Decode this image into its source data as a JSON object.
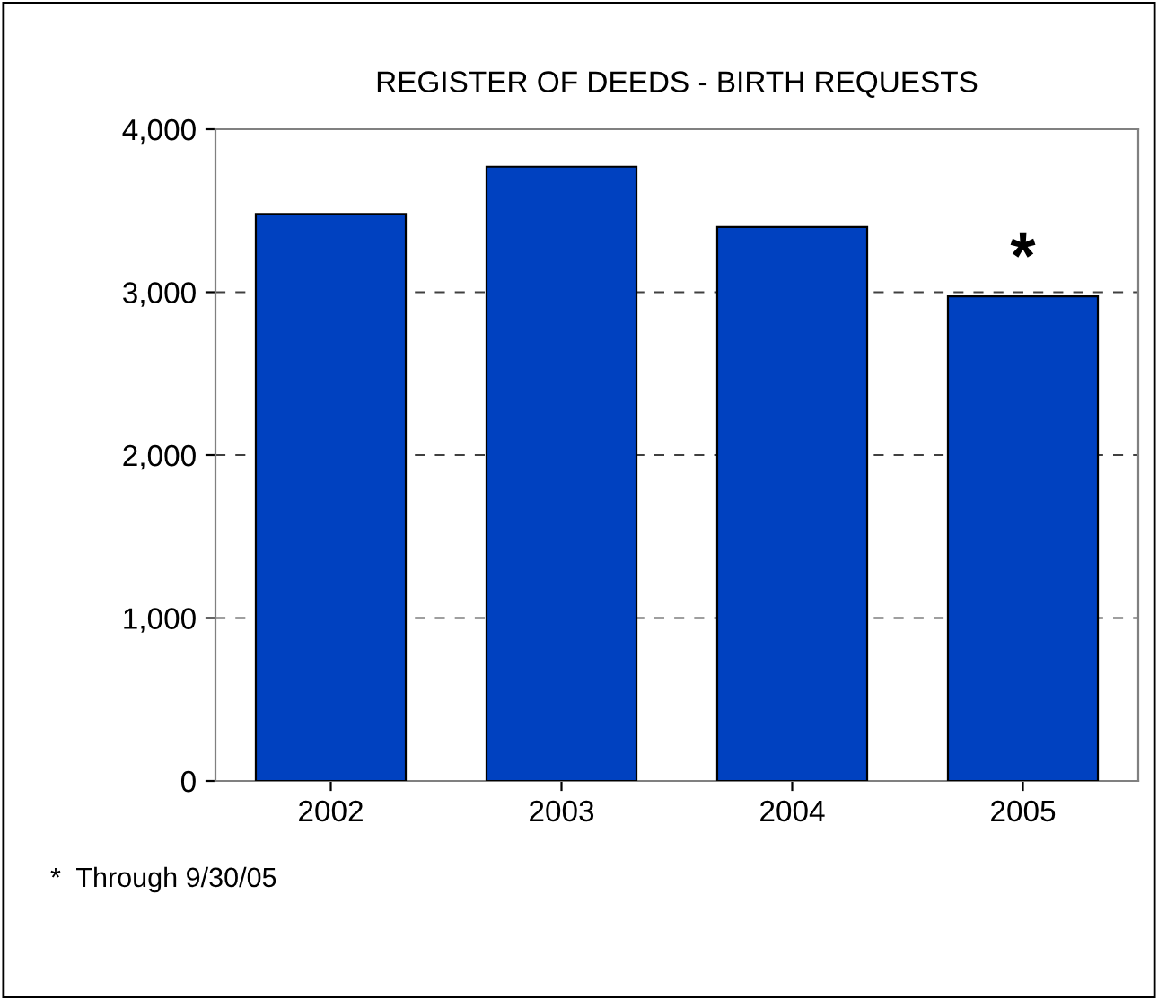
{
  "chart_data": {
    "type": "bar",
    "title": "REGISTER OF DEEDS - BIRTH REQUESTS",
    "categories": [
      "2002",
      "2003",
      "2004",
      "2005"
    ],
    "values": [
      3480,
      3770,
      3400,
      2975
    ],
    "color": "#0041c0",
    "ylim": [
      0,
      4000
    ],
    "yticks": [
      {
        "value": 0,
        "label": "0"
      },
      {
        "value": 1000,
        "label": "1,000"
      },
      {
        "value": 2000,
        "label": "2,000"
      },
      {
        "value": 3000,
        "label": "3,000"
      },
      {
        "value": 4000,
        "label": "4,000"
      }
    ],
    "grid": "y",
    "line_style": "dashed",
    "annotations": [
      {
        "text": "*",
        "x": "2005",
        "y": 2975
      },
      "*  Through 9/30/05"
    ]
  }
}
